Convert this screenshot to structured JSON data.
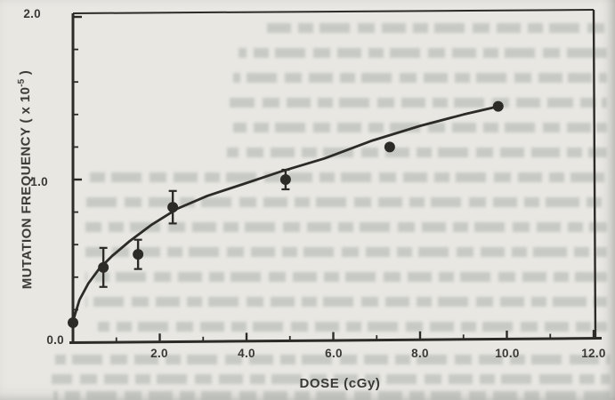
{
  "figure": {
    "x_axis_title": "DOSE (cGy)",
    "y_axis_title_pre": "MUTATION FREQUENCY ( x 10",
    "y_axis_title_sup": "-5",
    "y_axis_title_post": " )",
    "y_tick_labels": [
      "0.0",
      "1.0",
      "2.0"
    ],
    "x_tick_labels": [
      "2.0",
      "4.0",
      "6.0",
      "8.0",
      "10.0",
      "12.0"
    ],
    "ink_color": "#2d2b28",
    "paper_color": "#e8e7e2"
  },
  "chart_data": {
    "type": "scatter",
    "title": "",
    "xlabel": "DOSE (cGy)",
    "ylabel": "MUTATION FREQUENCY ( x 10^-5 )",
    "xlim": [
      0,
      12
    ],
    "ylim": [
      0,
      2
    ],
    "x_major_ticks": [
      0,
      2,
      4,
      6,
      8,
      10,
      12
    ],
    "x_minor_step": 1,
    "y_major_ticks": [
      0,
      1,
      2
    ],
    "y_minor_step": 0.2,
    "grid": false,
    "legend": null,
    "series": [
      {
        "name": "observed mutation frequency",
        "type": "scatter",
        "marker": "filled-circle",
        "x": [
          0,
          0.7,
          1.5,
          2.3,
          4.9,
          7.3,
          9.8
        ],
        "y": [
          0.12,
          0.46,
          0.54,
          0.83,
          1.0,
          1.2,
          1.45
        ],
        "y_err": [
          0,
          0.12,
          0.09,
          0.1,
          0.06,
          0,
          0
        ]
      },
      {
        "name": "fitted dose-response curve",
        "type": "line",
        "x": [
          0,
          0.15,
          0.35,
          0.6,
          0.9,
          1.3,
          1.8,
          2.4,
          3.1,
          3.9,
          4.8,
          5.8,
          6.9,
          8.0,
          9.0,
          9.8
        ],
        "y": [
          0.13,
          0.26,
          0.36,
          0.45,
          0.53,
          0.62,
          0.72,
          0.82,
          0.9,
          0.97,
          1.05,
          1.13,
          1.24,
          1.33,
          1.4,
          1.45
        ]
      }
    ]
  }
}
